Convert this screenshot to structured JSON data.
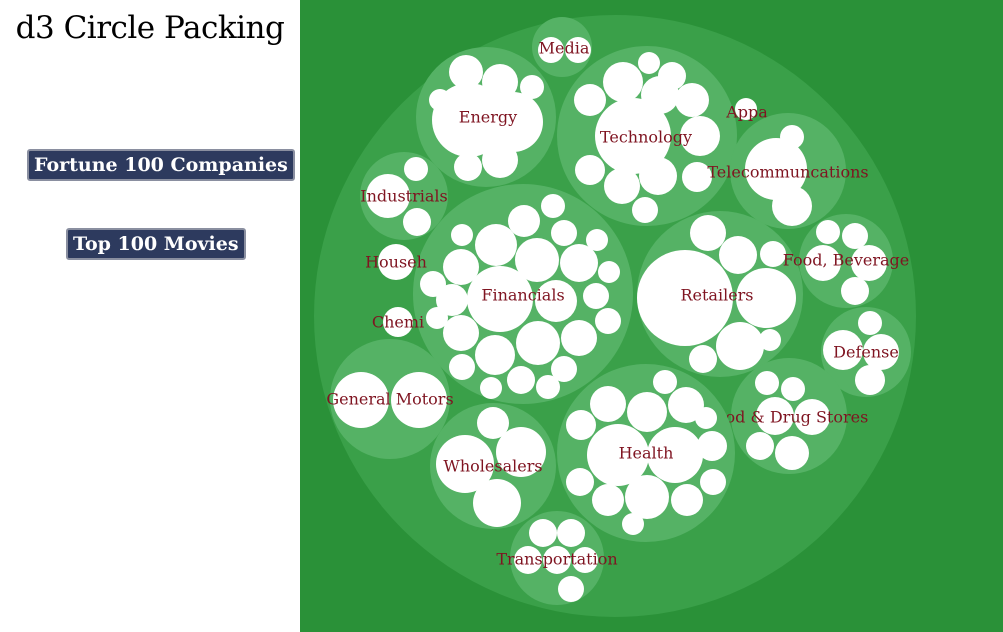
{
  "title": "d3 Circle Packing",
  "buttons": {
    "fortune": "Fortune 100 Companies",
    "movies": "Top 100 Movies"
  },
  "colors": {
    "background": "#2a9138",
    "root_circle": "#3aa049",
    "group_circle": "#55b265",
    "leaf_circle": "#ffffff",
    "label": "#7f1421"
  },
  "packing": {
    "root": "Fortune 100 Companies",
    "groups": [
      {
        "name": "Media",
        "children": [
          {
            "size": 1
          },
          {
            "size": 1
          }
        ]
      },
      {
        "name": "Energy",
        "children": [
          {
            "size": 3.2
          },
          {
            "size": 2.2
          },
          {
            "size": 1.2
          },
          {
            "size": 1
          },
          {
            "size": 0.9
          },
          {
            "size": 0.7
          },
          {
            "size": 0.6
          },
          {
            "size": 0.6
          }
        ]
      },
      {
        "name": "Technology",
        "children": [
          {
            "size": 3.6
          },
          {
            "size": 1
          },
          {
            "size": 1
          },
          {
            "size": 1
          },
          {
            "size": 0.9
          },
          {
            "size": 0.8
          },
          {
            "size": 0.8
          },
          {
            "size": 0.8
          },
          {
            "size": 0.8
          },
          {
            "size": 0.7
          },
          {
            "size": 0.7
          },
          {
            "size": 0.5
          },
          {
            "size": 0.4
          }
        ]
      },
      {
        "name": "Appa",
        "children": [
          {
            "size": 1
          }
        ]
      },
      {
        "name": "Telecommuncations",
        "children": [
          {
            "size": 2.6
          },
          {
            "size": 1.3
          },
          {
            "size": 0.4
          }
        ]
      },
      {
        "name": "Industrials",
        "children": [
          {
            "size": 1
          },
          {
            "size": 0.6
          },
          {
            "size": 0.5
          }
        ]
      },
      {
        "name": "Financials",
        "children": [
          {
            "size": 3.5
          },
          {
            "size": 1.3
          },
          {
            "size": 1.3
          },
          {
            "size": 1.2
          },
          {
            "size": 1.1
          },
          {
            "size": 1
          },
          {
            "size": 1
          },
          {
            "size": 0.9
          },
          {
            "size": 0.9
          },
          {
            "size": 0.9
          },
          {
            "size": 0.8
          },
          {
            "size": 0.8
          },
          {
            "size": 0.7
          },
          {
            "size": 0.6
          },
          {
            "size": 0.6
          },
          {
            "size": 0.5
          },
          {
            "size": 0.5
          },
          {
            "size": 0.5
          },
          {
            "size": 0.5
          },
          {
            "size": 0.5
          },
          {
            "size": 0.4
          },
          {
            "size": 0.4
          },
          {
            "size": 0.3
          },
          {
            "size": 0.3
          },
          {
            "size": 0.3
          },
          {
            "size": 0.3
          }
        ]
      },
      {
        "name": "Retailers",
        "children": [
          {
            "size": 5.5
          },
          {
            "size": 1.4
          },
          {
            "size": 1.1
          },
          {
            "size": 0.8
          },
          {
            "size": 0.5
          },
          {
            "size": 0.4
          },
          {
            "size": 0.4
          },
          {
            "size": 0.3
          }
        ]
      },
      {
        "name": "Food, Beverage",
        "children": [
          {
            "size": 1
          },
          {
            "size": 0.8
          },
          {
            "size": 0.6
          },
          {
            "size": 0.5
          },
          {
            "size": 0.4
          }
        ]
      },
      {
        "name": "Househ",
        "children": [
          {
            "size": 1
          }
        ]
      },
      {
        "name": "Chemi",
        "children": [
          {
            "size": 1
          }
        ]
      },
      {
        "name": "Defense",
        "children": [
          {
            "size": 1
          },
          {
            "size": 0.8
          },
          {
            "size": 0.6
          },
          {
            "size": 0.4
          }
        ]
      },
      {
        "name": "General Motors",
        "children": [
          {
            "size": 1
          },
          {
            "size": 1
          }
        ]
      },
      {
        "name": "Food & Drug Stores",
        "children": [
          {
            "size": 1
          },
          {
            "size": 0.8
          },
          {
            "size": 0.7
          },
          {
            "size": 0.5
          },
          {
            "size": 0.4
          },
          {
            "size": 0.4
          }
        ]
      },
      {
        "name": "Wholesalers",
        "children": [
          {
            "size": 1.2
          },
          {
            "size": 1
          },
          {
            "size": 1
          },
          {
            "size": 0.9
          }
        ]
      },
      {
        "name": "Health",
        "children": [
          {
            "size": 2.6
          },
          {
            "size": 1.2
          },
          {
            "size": 1.1
          },
          {
            "size": 1
          },
          {
            "size": 0.9
          },
          {
            "size": 0.8
          },
          {
            "size": 0.8
          },
          {
            "size": 0.8
          },
          {
            "size": 0.7
          },
          {
            "size": 0.7
          },
          {
            "size": 0.6
          },
          {
            "size": 0.5
          },
          {
            "size": 0.4
          },
          {
            "size": 0.4
          },
          {
            "size": 0.4
          }
        ]
      },
      {
        "name": "Transportation",
        "children": [
          {
            "size": 1
          },
          {
            "size": 0.9
          },
          {
            "size": 0.9
          },
          {
            "size": 0.8
          },
          {
            "size": 0.5
          },
          {
            "size": 0.5
          }
        ]
      }
    ]
  }
}
